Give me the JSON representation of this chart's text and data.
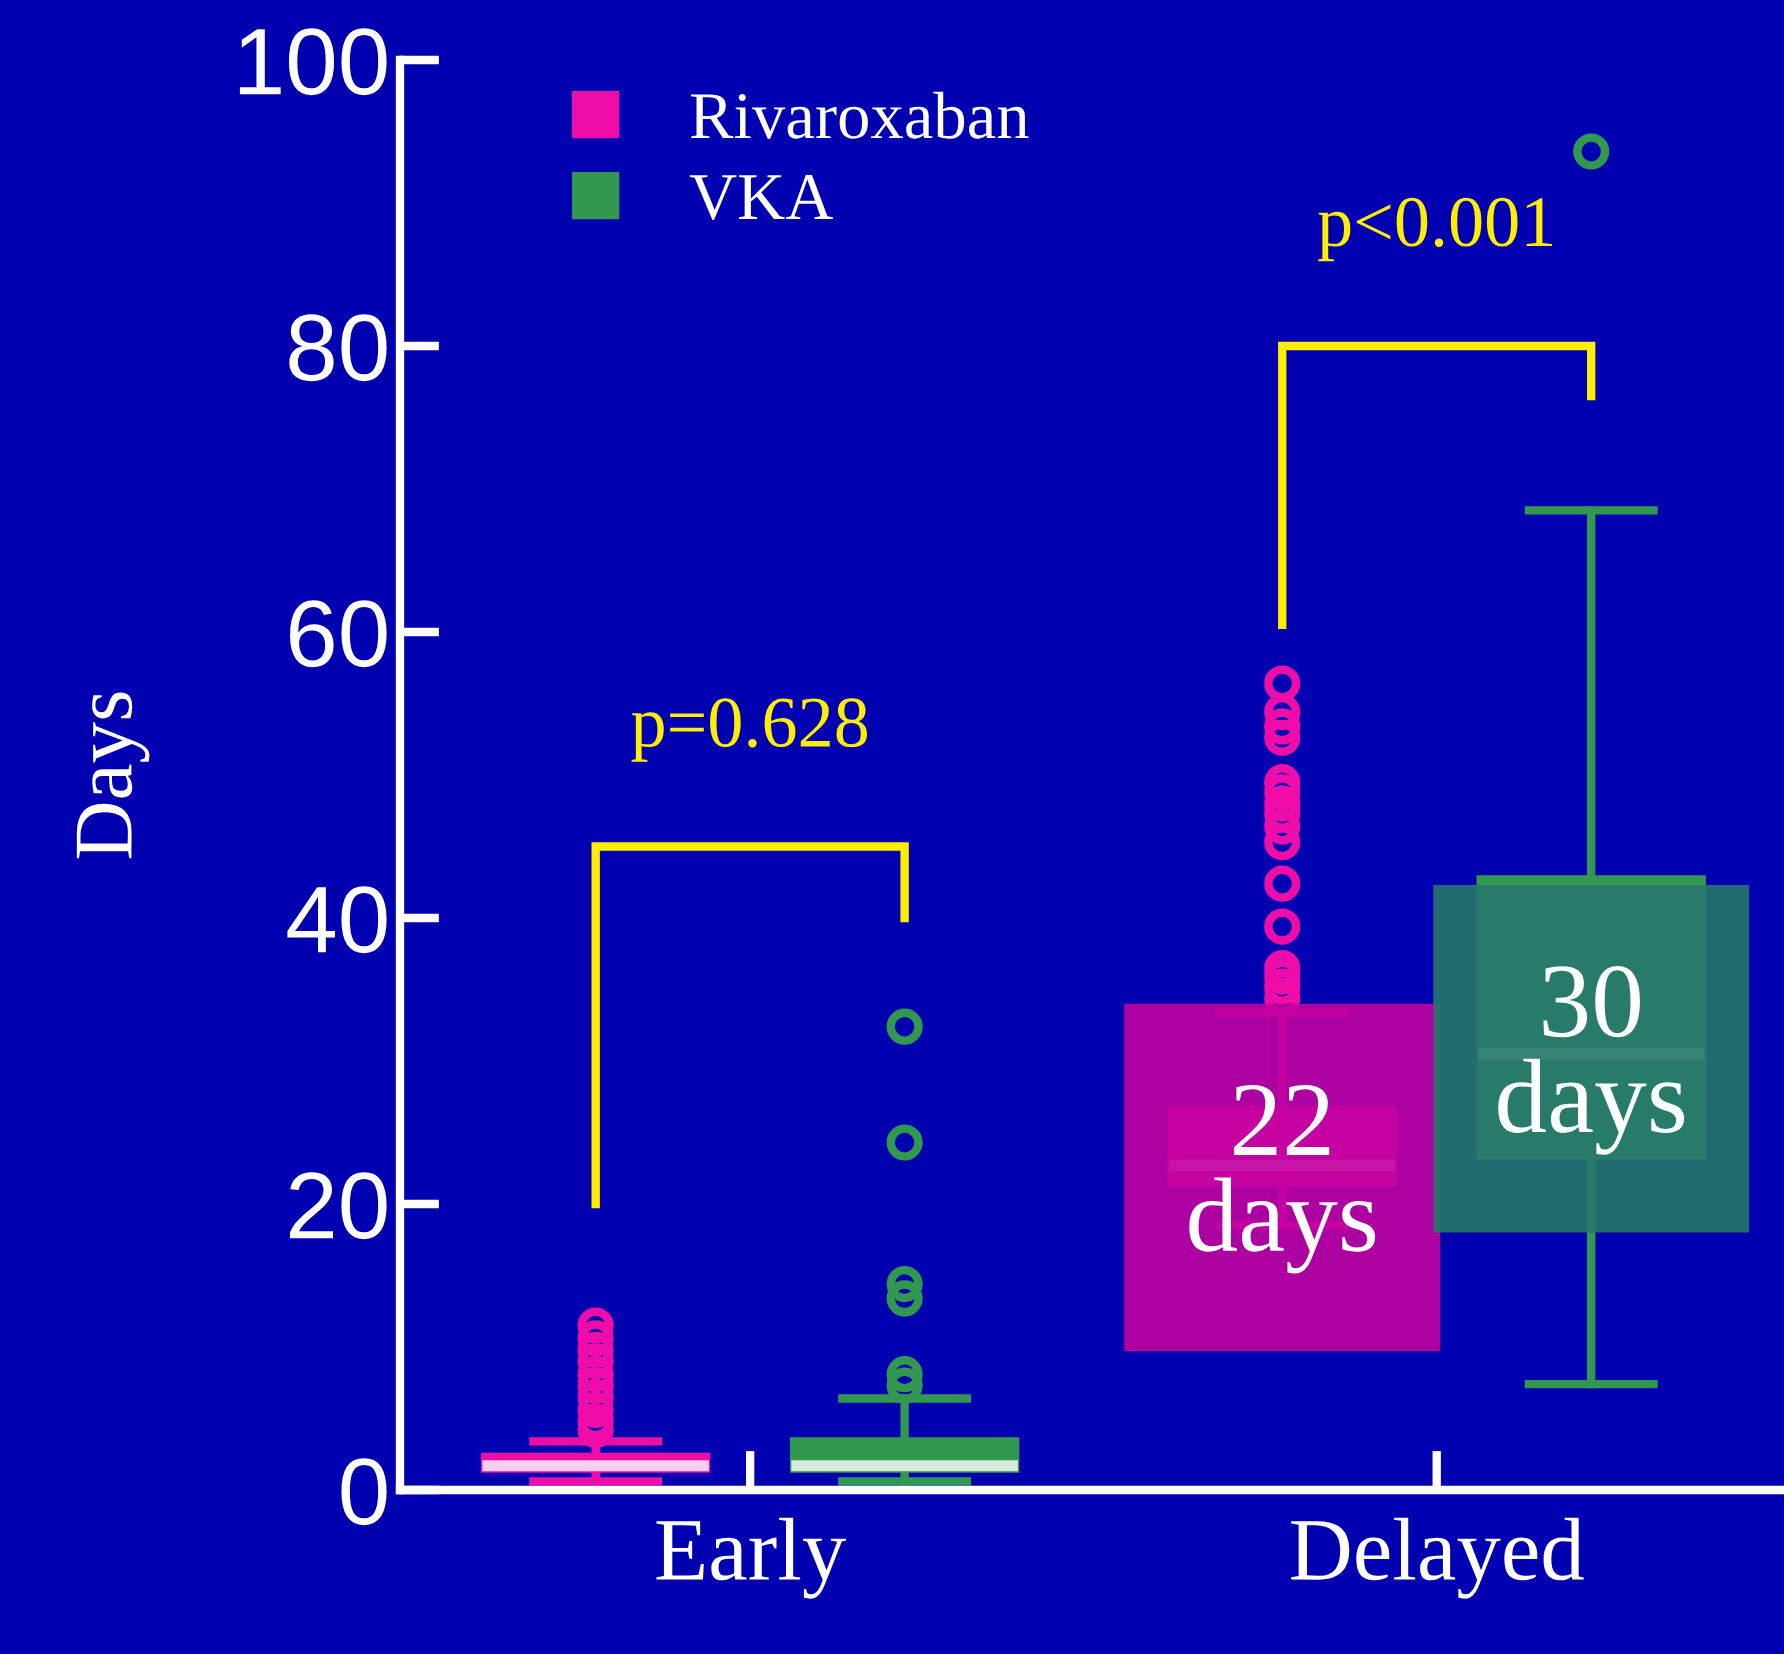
{
  "chart_data": {
    "type": "box",
    "ylabel": "Days",
    "categories": [
      "Early",
      "Delayed"
    ],
    "series": [
      {
        "name": "Rivaroxaban",
        "color": "#f00ca8",
        "boxes": [
          {
            "low": 0.6,
            "q1": 1.3,
            "median": 1.7,
            "q3": 2.5,
            "high": 3.4,
            "outliers": [
              4.2,
              4.8,
              5.6,
              6.5,
              7.3,
              8.1,
              9.0,
              9.8,
              10.6,
              11.5
            ]
          },
          {
            "low": 18.5,
            "q1": 21.3,
            "median": 22.7,
            "q3": 26.8,
            "high": 33.4,
            "outliers": [
              34.4,
              35.2,
              35.9,
              36.5,
              39.4,
              42.4,
              45.3,
              46.4,
              47.3,
              48.0,
              48.8,
              49.5,
              52.6,
              53.4,
              54.4,
              56.4
            ]
          }
        ]
      },
      {
        "name": "VKA",
        "color": "#33984f",
        "boxes": [
          {
            "low": 0.6,
            "q1": 1.3,
            "median": 1.7,
            "q3": 3.6,
            "high": 6.4,
            "outliers": [
              7.3,
              8.1,
              13.4,
              14.4,
              24.3,
              32.4
            ]
          },
          {
            "low": 7.4,
            "q1": 23.2,
            "median": 30.5,
            "q3": 42.9,
            "high": 68.5,
            "outliers": [
              93.6
            ]
          }
        ]
      }
    ],
    "annotations": [
      "p=0.628",
      "p<0.001",
      "22\ndays",
      "30\ndays"
    ],
    "ylim": [
      0,
      100
    ],
    "yticks": [
      0,
      20,
      40,
      60,
      80,
      100
    ],
    "legend": "top left",
    "grid": false
  }
}
